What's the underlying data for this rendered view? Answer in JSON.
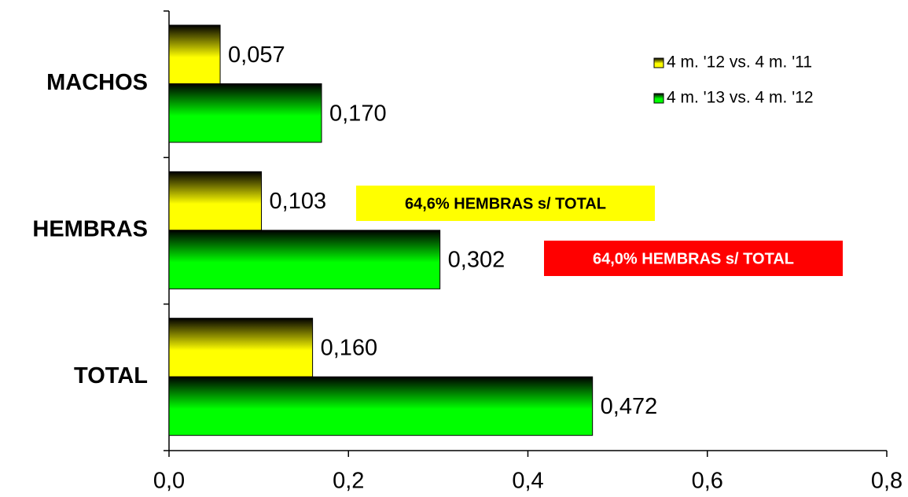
{
  "chart_data": {
    "type": "bar",
    "orientation": "horizontal",
    "categories": [
      "MACHOS",
      "HEMBRAS",
      "TOTAL"
    ],
    "series": [
      {
        "name": "4 m. '12 vs. 4 m. '11",
        "color": "#ffff00",
        "values": [
          0.057,
          0.103,
          0.16
        ],
        "value_labels": [
          "0,057",
          "0,103",
          "0,160"
        ]
      },
      {
        "name": "4 m. '13 vs. 4 m. '12",
        "color": "#00ff00",
        "values": [
          0.17,
          0.302,
          0.472
        ],
        "value_labels": [
          "0,170",
          "0,302",
          "0,472"
        ]
      }
    ],
    "xlim": [
      0,
      0.8
    ],
    "xticks": [
      {
        "value": 0,
        "label": "0,0"
      },
      {
        "value": 0.2,
        "label": "0,2"
      },
      {
        "value": 0.4,
        "label": "0,4"
      },
      {
        "value": 0.6,
        "label": "0,6"
      },
      {
        "value": 0.8,
        "label": "0,8"
      }
    ],
    "legend": "upper right",
    "annotations": [
      {
        "text": "64,6% HEMBRAS s/ TOTAL",
        "color": "#ffff00",
        "text_color": "#000000"
      },
      {
        "text": "64,0% HEMBRAS s/ TOTAL",
        "color": "#ff0000",
        "text_color": "#ffffff"
      }
    ]
  }
}
